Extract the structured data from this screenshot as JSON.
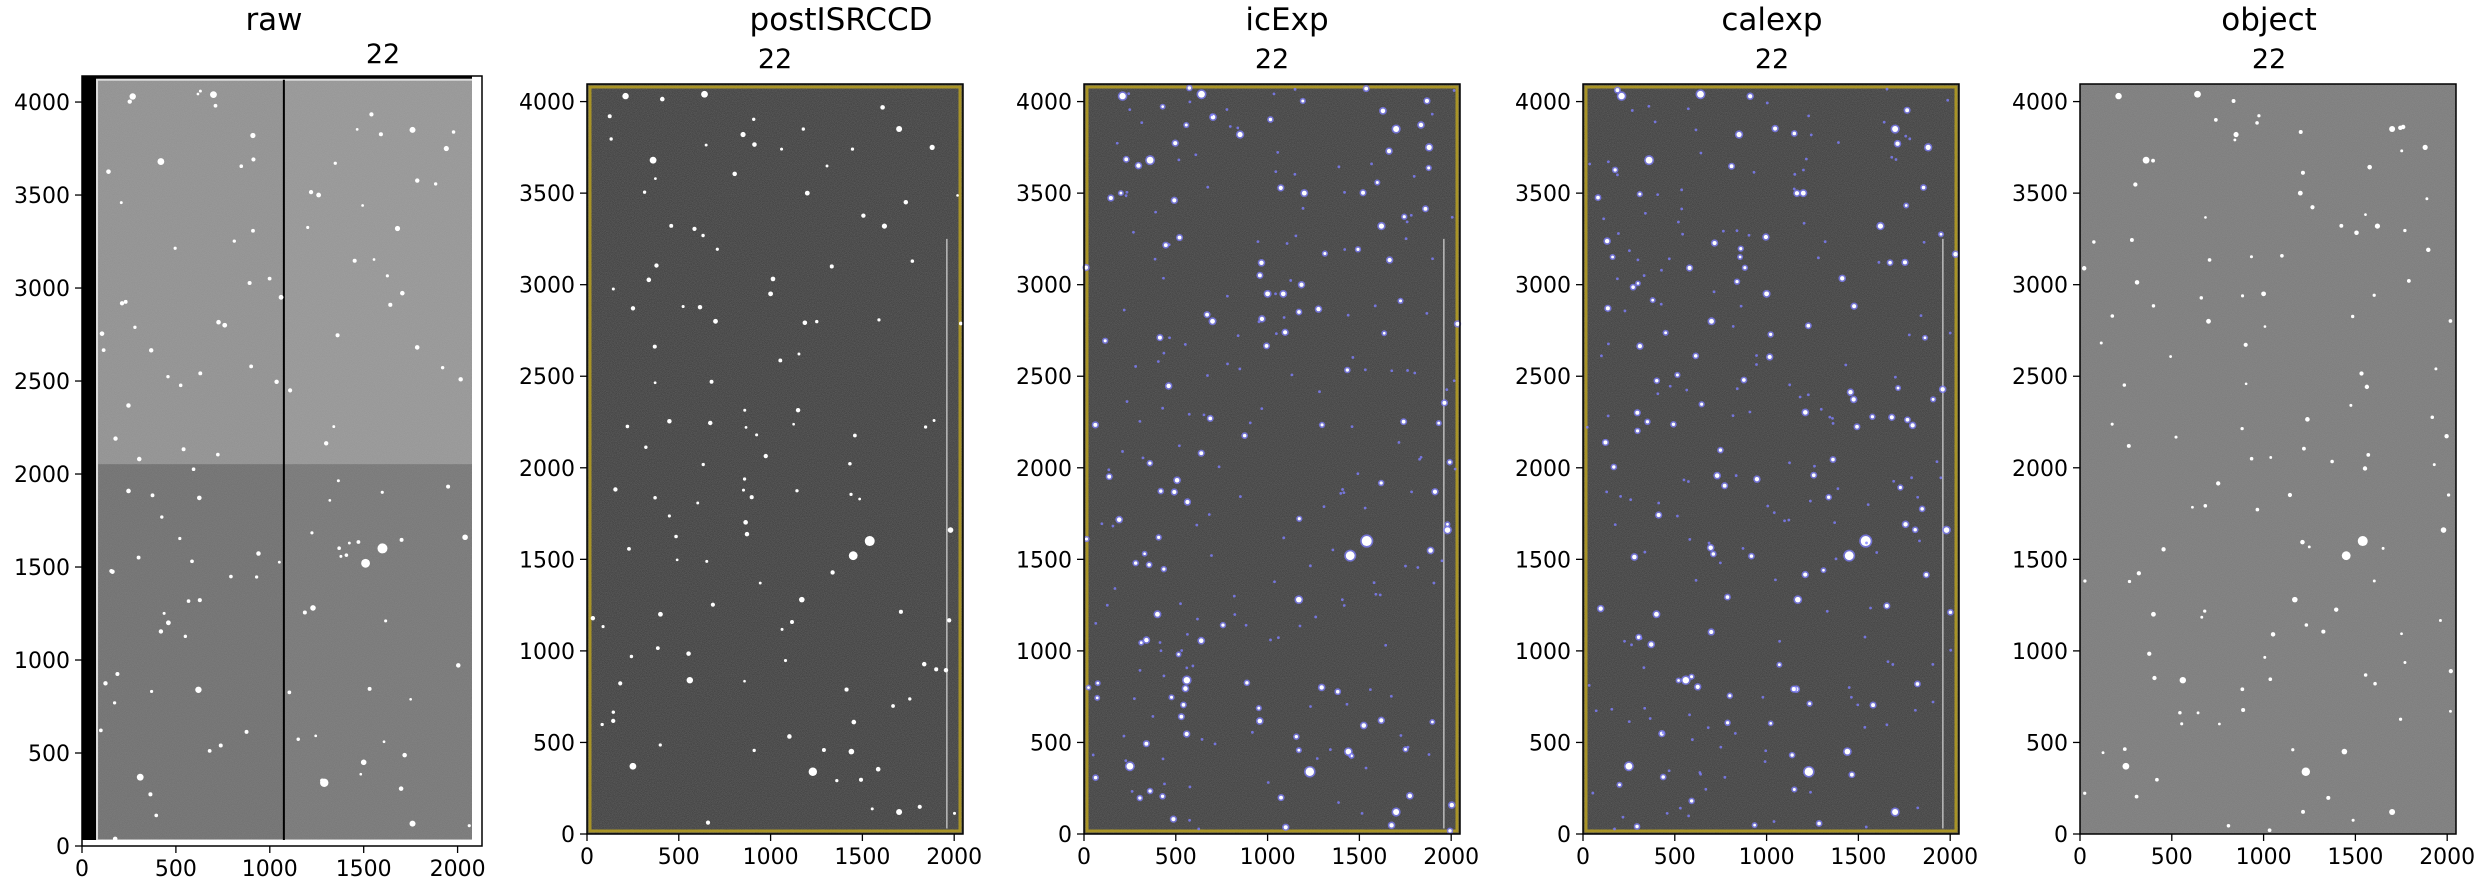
{
  "panels": [
    {
      "id": "raw",
      "title": "raw",
      "subtitle": "22",
      "kind": "raw",
      "x_ticks": [
        "0",
        "500",
        "1000",
        "1500",
        "2000"
      ],
      "y_ticks": [
        "0",
        "500",
        "1000",
        "1500",
        "2000",
        "2500",
        "3000",
        "3500",
        "4000"
      ],
      "xlim": [
        0,
        2130
      ],
      "ylim": [
        0,
        4140
      ]
    },
    {
      "id": "postISRCCD",
      "title": "postISRCCD",
      "subtitle": "22",
      "kind": "processed",
      "x_ticks": [
        "0",
        "500",
        "1000",
        "1500",
        "2000"
      ],
      "y_ticks": [
        "0",
        "500",
        "1000",
        "1500",
        "2000",
        "2500",
        "3000",
        "3500",
        "4000"
      ],
      "xlim": [
        0,
        2048
      ],
      "ylim": [
        0,
        4096
      ]
    },
    {
      "id": "icExp",
      "title": "icExp",
      "subtitle": "22",
      "kind": "masked",
      "x_ticks": [
        "0",
        "500",
        "1000",
        "1500",
        "2000"
      ],
      "y_ticks": [
        "0",
        "500",
        "1000",
        "1500",
        "2000",
        "2500",
        "3000",
        "3500",
        "4000"
      ],
      "xlim": [
        0,
        2048
      ],
      "ylim": [
        0,
        4096
      ]
    },
    {
      "id": "calexp",
      "title": "calexp",
      "subtitle": "22",
      "kind": "masked",
      "x_ticks": [
        "0",
        "500",
        "1000",
        "1500",
        "2000"
      ],
      "y_ticks": [
        "0",
        "500",
        "1000",
        "1500",
        "2000",
        "2500",
        "3000",
        "3500",
        "4000"
      ],
      "xlim": [
        0,
        2048
      ],
      "ylim": [
        0,
        4096
      ]
    },
    {
      "id": "object",
      "title": "object",
      "subtitle": "22",
      "kind": "object",
      "x_ticks": [
        "0",
        "500",
        "1000",
        "1500",
        "2000"
      ],
      "y_ticks": [
        "0",
        "500",
        "1000",
        "1500",
        "2000",
        "2500",
        "3000",
        "3500",
        "4000"
      ],
      "xlim": [
        0,
        2048
      ],
      "ylim": [
        0,
        4096
      ]
    }
  ],
  "colors": {
    "raw_top": "#8f8f8f",
    "raw_bottom": "#6e6e6e",
    "processed_bg": "#3a3a3a",
    "object_bg": "#7a7a7a",
    "mask_edge": "#b8a020",
    "mask_blue": "#7f7fff",
    "star": "#ffffff"
  }
}
